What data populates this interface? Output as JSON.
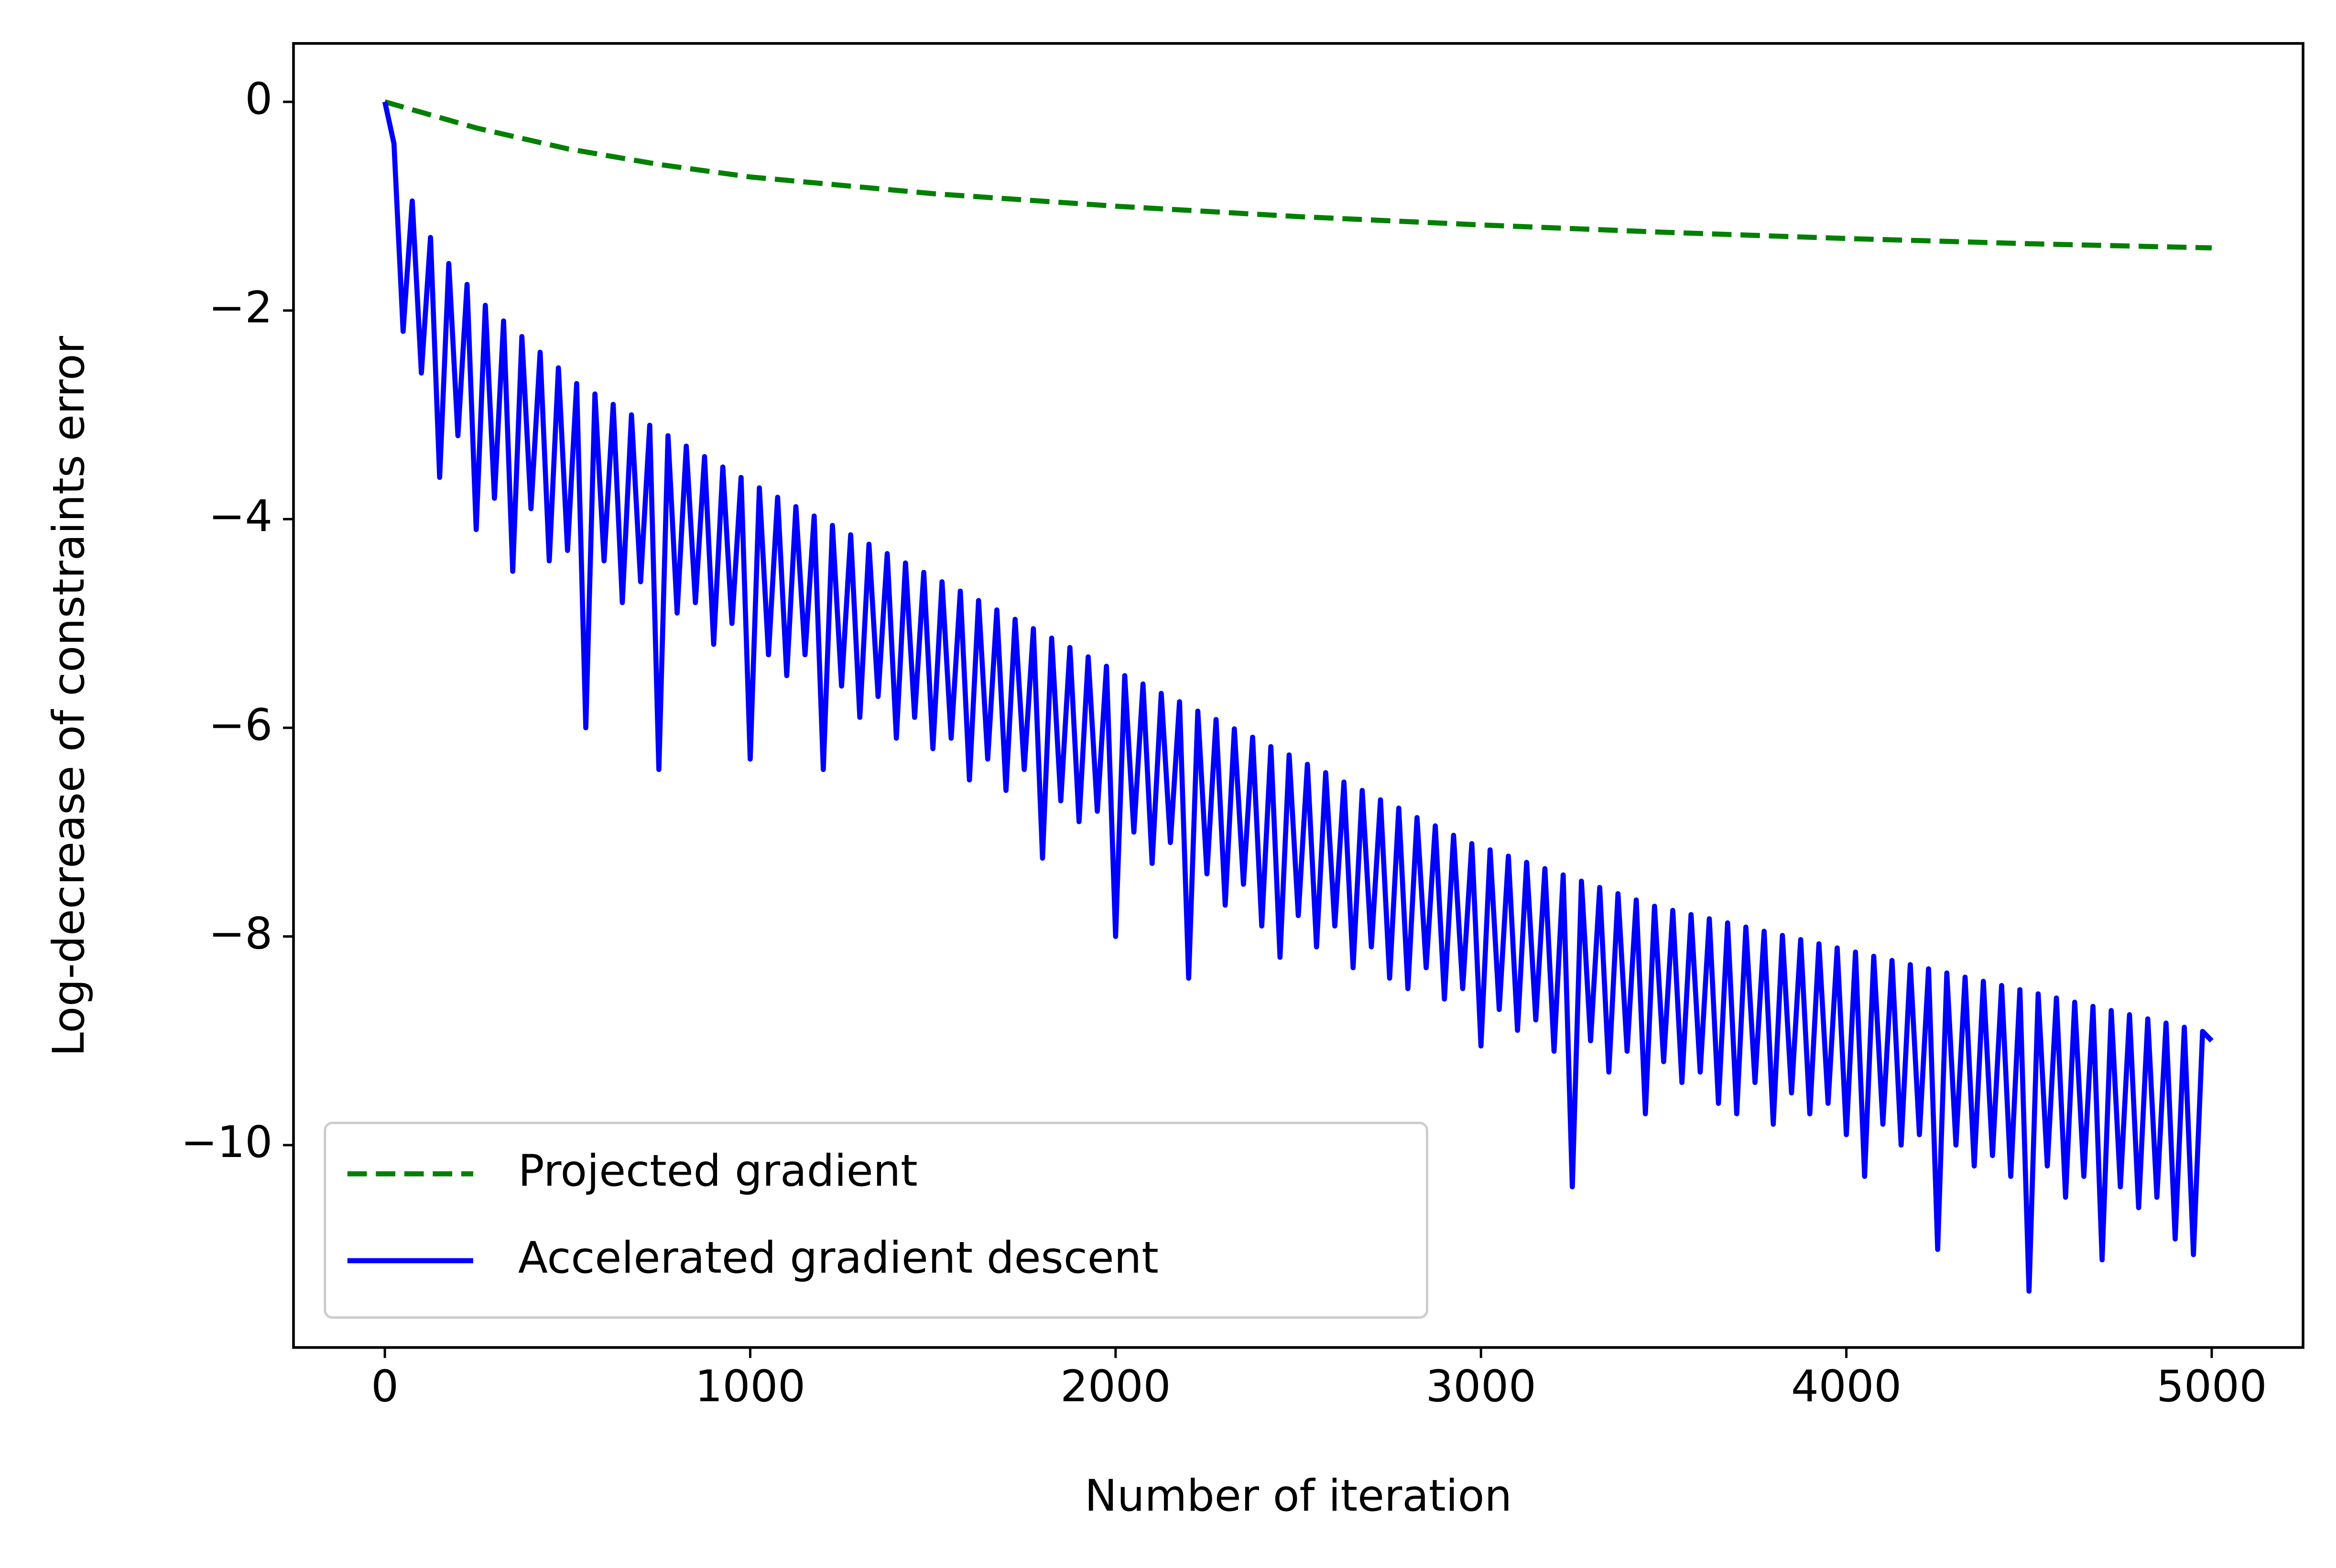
{
  "chart_data": {
    "type": "line",
    "xlabel": "Number of iteration",
    "ylabel": "Log-decrease of constraints error",
    "xlim": [
      -250,
      5250
    ],
    "ylim": [
      -11.94,
      0.56
    ],
    "xticks": [
      0,
      1000,
      2000,
      3000,
      4000,
      5000
    ],
    "yticks": [
      {
        "value": -10,
        "label": "−10"
      },
      {
        "value": -8,
        "label": "−8"
      },
      {
        "value": -6,
        "label": "−6"
      },
      {
        "value": -4,
        "label": "−4"
      },
      {
        "value": -2,
        "label": "−2"
      },
      0
    ],
    "legend": "lower left",
    "series": [
      {
        "name": "Projected gradient",
        "color": "#008000",
        "style": "dashed",
        "x": [
          0,
          250,
          500,
          750,
          1000,
          1500,
          2000,
          2500,
          3000,
          3500,
          4000,
          4500,
          5000
        ],
        "values": [
          0,
          -0.25,
          -0.45,
          -0.6,
          -0.72,
          -0.88,
          -1.0,
          -1.1,
          -1.18,
          -1.25,
          -1.31,
          -1.36,
          -1.4
        ]
      },
      {
        "name": "Accelerated gradient descent",
        "color": "#0000ff",
        "style": "solid",
        "x": [
          0,
          25,
          50,
          75,
          100,
          125,
          150,
          175,
          200,
          225,
          250,
          275,
          300,
          325,
          350,
          375,
          400,
          425,
          450,
          475,
          500,
          525,
          550,
          575,
          600,
          625,
          650,
          675,
          700,
          725,
          750,
          775,
          800,
          825,
          850,
          875,
          900,
          925,
          950,
          975,
          1000,
          1025,
          1050,
          1075,
          1100,
          1125,
          1150,
          1175,
          1200,
          1225,
          1250,
          1275,
          1300,
          1325,
          1350,
          1375,
          1400,
          1425,
          1450,
          1475,
          1500,
          1525,
          1550,
          1575,
          1600,
          1625,
          1650,
          1675,
          1700,
          1725,
          1750,
          1775,
          1800,
          1825,
          1850,
          1875,
          1900,
          1925,
          1950,
          1975,
          2000,
          2025,
          2050,
          2075,
          2100,
          2125,
          2150,
          2175,
          2200,
          2225,
          2250,
          2275,
          2300,
          2325,
          2350,
          2375,
          2400,
          2425,
          2450,
          2475,
          2500,
          2525,
          2550,
          2575,
          2600,
          2625,
          2650,
          2675,
          2700,
          2725,
          2750,
          2775,
          2800,
          2825,
          2850,
          2875,
          2900,
          2925,
          2950,
          2975,
          3000,
          3025,
          3050,
          3075,
          3100,
          3125,
          3150,
          3175,
          3200,
          3225,
          3250,
          3275,
          3300,
          3325,
          3350,
          3375,
          3400,
          3425,
          3450,
          3475,
          3500,
          3525,
          3550,
          3575,
          3600,
          3625,
          3650,
          3675,
          3700,
          3725,
          3750,
          3775,
          3800,
          3825,
          3850,
          3875,
          3900,
          3925,
          3950,
          3975,
          4000,
          4025,
          4050,
          4075,
          4100,
          4125,
          4150,
          4175,
          4200,
          4225,
          4250,
          4275,
          4300,
          4325,
          4350,
          4375,
          4400,
          4425,
          4450,
          4475,
          4500,
          4525,
          4550,
          4575,
          4600,
          4625,
          4650,
          4675,
          4700,
          4725,
          4750,
          4775,
          4800,
          4825,
          4850,
          4875,
          4900,
          4925,
          4950,
          4975,
          5000
        ],
        "values": [
          0,
          -0.4,
          -2.2,
          -0.95,
          -2.6,
          -1.3,
          -3.6,
          -1.55,
          -3.2,
          -1.75,
          -4.1,
          -1.95,
          -3.8,
          -2.1,
          -4.5,
          -2.25,
          -3.9,
          -2.4,
          -4.4,
          -2.55,
          -4.3,
          -2.7,
          -6.0,
          -2.8,
          -4.4,
          -2.9,
          -4.8,
          -3.0,
          -4.6,
          -3.1,
          -6.4,
          -3.2,
          -4.9,
          -3.3,
          -4.8,
          -3.4,
          -5.2,
          -3.5,
          -5.0,
          -3.6,
          -6.3,
          -3.7,
          -5.3,
          -3.79,
          -5.5,
          -3.88,
          -5.3,
          -3.97,
          -6.4,
          -4.06,
          -5.6,
          -4.15,
          -5.9,
          -4.24,
          -5.7,
          -4.33,
          -6.1,
          -4.42,
          -5.9,
          -4.51,
          -6.2,
          -4.6,
          -6.1,
          -4.69,
          -6.5,
          -4.78,
          -6.3,
          -4.87,
          -6.6,
          -4.96,
          -6.4,
          -5.05,
          -7.25,
          -5.14,
          -6.7,
          -5.23,
          -6.9,
          -5.32,
          -6.8,
          -5.41,
          -8.0,
          -5.5,
          -7.0,
          -5.58,
          -7.3,
          -5.67,
          -7.1,
          -5.75,
          -8.4,
          -5.84,
          -7.4,
          -5.92,
          -7.7,
          -6.01,
          -7.5,
          -6.09,
          -7.9,
          -6.18,
          -8.2,
          -6.26,
          -7.8,
          -6.35,
          -8.1,
          -6.43,
          -7.9,
          -6.52,
          -8.3,
          -6.6,
          -8.1,
          -6.69,
          -8.4,
          -6.77,
          -8.5,
          -6.86,
          -8.3,
          -6.94,
          -8.6,
          -7.03,
          -8.5,
          -7.11,
          -9.05,
          -7.17,
          -8.7,
          -7.23,
          -8.9,
          -7.29,
          -8.8,
          -7.35,
          -9.1,
          -7.41,
          -10.4,
          -7.47,
          -9.0,
          -7.53,
          -9.3,
          -7.59,
          -9.1,
          -7.65,
          -9.7,
          -7.71,
          -9.2,
          -7.75,
          -9.4,
          -7.79,
          -9.3,
          -7.83,
          -9.6,
          -7.87,
          -9.7,
          -7.91,
          -9.4,
          -7.95,
          -9.8,
          -7.99,
          -9.5,
          -8.03,
          -9.7,
          -8.07,
          -9.6,
          -8.11,
          -9.9,
          -8.15,
          -10.3,
          -8.19,
          -9.8,
          -8.23,
          -10.0,
          -8.27,
          -9.9,
          -8.31,
          -11.0,
          -8.35,
          -10.0,
          -8.39,
          -10.2,
          -8.43,
          -10.1,
          -8.47,
          -10.3,
          -8.51,
          -11.4,
          -8.55,
          -10.2,
          -8.59,
          -10.5,
          -8.63,
          -10.3,
          -8.67,
          -11.1,
          -8.71,
          -10.4,
          -8.75,
          -10.6,
          -8.79,
          -10.5,
          -8.83,
          -10.9,
          -8.87,
          -11.05,
          -8.91,
          -9.0
        ]
      }
    ]
  }
}
